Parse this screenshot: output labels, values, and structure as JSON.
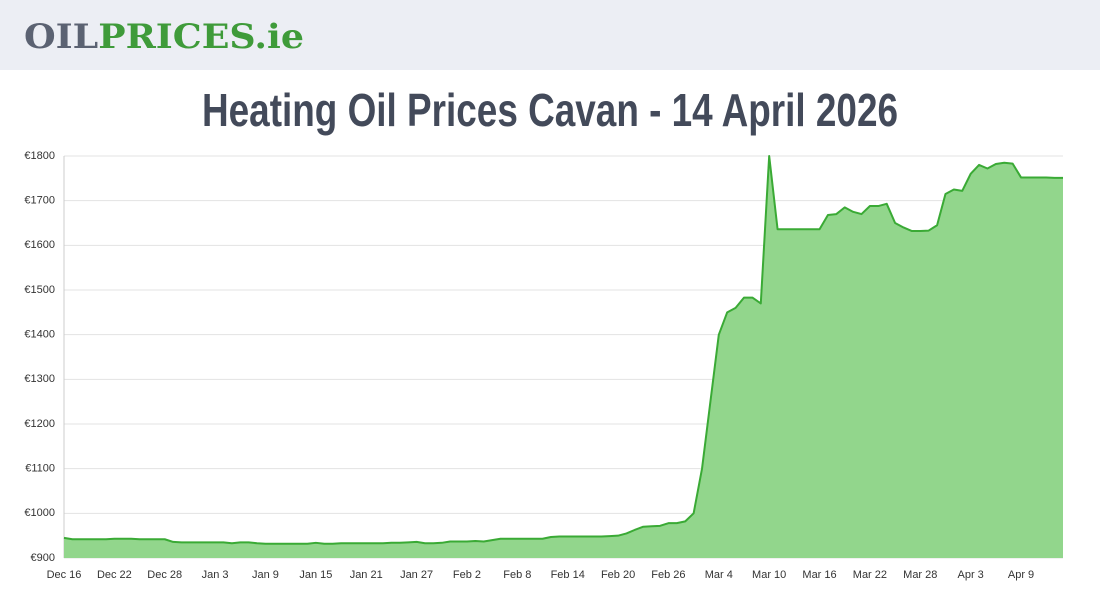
{
  "header": {
    "logo_part1": "OIL",
    "logo_part2": "PRICES.ie"
  },
  "chart_data": {
    "type": "area",
    "title": "Heating Oil Prices Cavan - 14 April 2026",
    "categories": [
      "Dec 16",
      null,
      null,
      null,
      null,
      null,
      "Dec 22",
      null,
      null,
      null,
      null,
      null,
      "Dec 28",
      null,
      null,
      null,
      null,
      null,
      "Jan 3",
      null,
      null,
      null,
      null,
      null,
      "Jan 9",
      null,
      null,
      null,
      null,
      null,
      "Jan 15",
      null,
      null,
      null,
      null,
      null,
      "Jan 21",
      null,
      null,
      null,
      null,
      null,
      "Jan 27",
      null,
      null,
      null,
      null,
      null,
      "Feb 2",
      null,
      null,
      null,
      null,
      null,
      "Feb 8",
      null,
      null,
      null,
      null,
      null,
      "Feb 14",
      null,
      null,
      null,
      null,
      null,
      "Feb 20",
      null,
      null,
      null,
      null,
      null,
      "Feb 26",
      null,
      null,
      null,
      null,
      null,
      "Mar 4",
      null,
      null,
      null,
      null,
      null,
      "Mar 10",
      null,
      null,
      null,
      null,
      null,
      "Mar 16",
      null,
      null,
      null,
      null,
      null,
      "Mar 22",
      null,
      null,
      null,
      null,
      null,
      "Mar 28",
      null,
      null,
      null,
      null,
      null,
      "Apr 3",
      null,
      null,
      null,
      null,
      null,
      "Apr 9",
      null,
      null,
      null,
      null,
      null
    ],
    "values": [
      945,
      942,
      942,
      942,
      942,
      942,
      943,
      943,
      943,
      942,
      942,
      942,
      942,
      936,
      935,
      935,
      935,
      935,
      935,
      935,
      933,
      935,
      935,
      933,
      932,
      932,
      932,
      932,
      932,
      932,
      934,
      932,
      932,
      933,
      933,
      933,
      933,
      933,
      933,
      934,
      934,
      935,
      936,
      933,
      933,
      934,
      937,
      937,
      937,
      938,
      937,
      940,
      943,
      943,
      943,
      943,
      943,
      943,
      947,
      948,
      948,
      948,
      948,
      948,
      948,
      949,
      950,
      955,
      963,
      970,
      971,
      972,
      978,
      978,
      982,
      1000,
      1100,
      1250,
      1400,
      1450,
      1460,
      1483,
      1483,
      1470,
      1800,
      1636,
      1636,
      1636,
      1636,
      1636,
      1636,
      1668,
      1670,
      1685,
      1675,
      1670,
      1688,
      1688,
      1693,
      1650,
      1640,
      1632,
      1632,
      1633,
      1645,
      1715,
      1725,
      1722,
      1760,
      1780,
      1772,
      1782,
      1785,
      1783,
      1752,
      1752,
      1752,
      1752,
      1751,
      1751
    ],
    "color": "#3aaa35",
    "fill_color": "#92d68c",
    "ylim": [
      900,
      1800
    ],
    "yticks": [
      {
        "value": 900,
        "label": "€900"
      },
      {
        "value": 1000,
        "label": "€1000"
      },
      {
        "value": 1100,
        "label": "€1100"
      },
      {
        "value": 1200,
        "label": "€1200"
      },
      {
        "value": 1300,
        "label": "€1300"
      },
      {
        "value": 1400,
        "label": "€1400"
      },
      {
        "value": 1500,
        "label": "€1500"
      },
      {
        "value": 1600,
        "label": "€1600"
      },
      {
        "value": 1700,
        "label": "€1700"
      },
      {
        "value": 1800,
        "label": "€1800"
      }
    ],
    "grid": true
  }
}
